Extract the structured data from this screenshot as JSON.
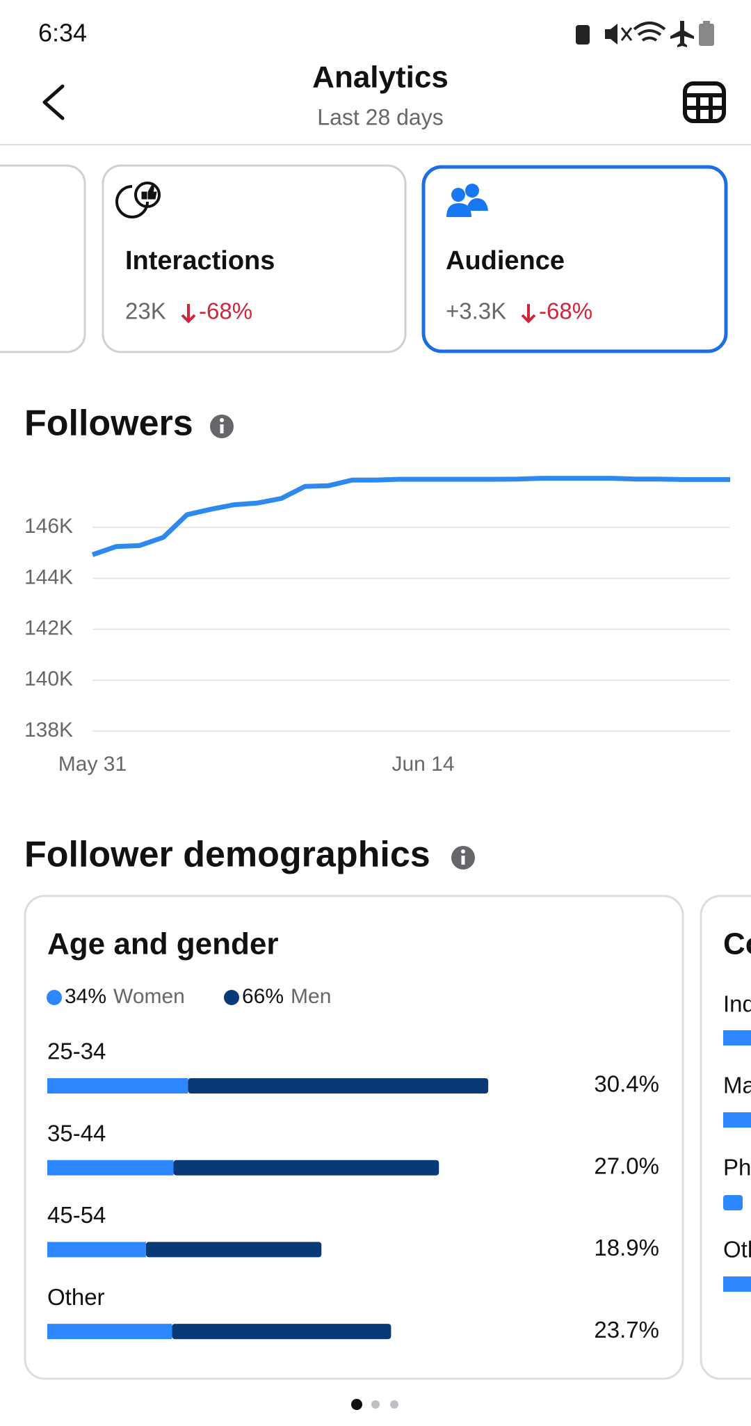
{
  "status_bar": {
    "time": "6:34"
  },
  "header": {
    "title": "Analytics",
    "subtitle": "Last 28 days"
  },
  "cards": [
    {
      "title": "Interactions",
      "value": "23K",
      "change": "-68%"
    },
    {
      "title": "Audience",
      "value": "+3.3K",
      "change": "-68%"
    }
  ],
  "demographics": {
    "title": "Follower demographics"
  },
  "chart_data": [
    {
      "type": "line",
      "title": "Followers",
      "color": "#2e89ef",
      "categories": [
        "May 31",
        null,
        null,
        null,
        null,
        null,
        null,
        null,
        null,
        null,
        null,
        null,
        null,
        null,
        "Jun 14",
        null,
        null,
        null,
        null,
        null,
        null,
        null,
        null,
        null,
        null,
        null,
        null,
        null
      ],
      "values": [
        144930,
        145250,
        145290,
        145610,
        146500,
        146710,
        146890,
        146960,
        147140,
        147610,
        147640,
        147860,
        147860,
        147890,
        147890,
        147890,
        147890,
        147890,
        147900,
        147930,
        147930,
        147930,
        147930,
        147900,
        147900,
        147880,
        147880,
        147880
      ],
      "ylim": [
        138000,
        148000
      ],
      "yticks": [
        {
          "value": 138000,
          "label": "138K"
        },
        {
          "value": 140000,
          "label": "140K"
        },
        {
          "value": 142000,
          "label": "142K"
        },
        {
          "value": 144000,
          "label": "144K"
        },
        {
          "value": 146000,
          "label": "146K"
        }
      ],
      "grid": true
    },
    {
      "type": "stacked-bar",
      "title": "Age and gender",
      "orientation": "horizontal",
      "categories": [
        "25-34",
        "35-44",
        "45-54",
        "Other"
      ],
      "series": [
        {
          "name": "Women",
          "share_label": "34%",
          "color": "#2d88ff",
          "values": [
            9.7,
            8.7,
            6.8,
            8.6
          ]
        },
        {
          "name": "Men",
          "share_label": "66%",
          "color": "#0a3977",
          "values": [
            20.7,
            18.3,
            12.1,
            15.1
          ]
        }
      ],
      "total_labels": [
        "30.4%",
        "27.0%",
        "18.9%",
        "23.7%"
      ]
    }
  ],
  "next_card": {
    "title": "Co",
    "rows": [
      "Ind",
      "Ma",
      "Ph",
      "Oth"
    ]
  }
}
